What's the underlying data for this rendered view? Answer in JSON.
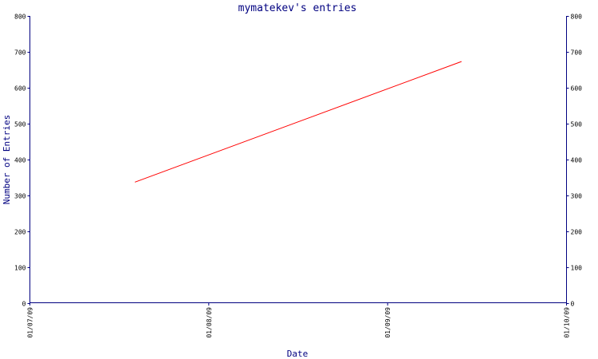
{
  "chart_data": {
    "type": "line",
    "title": "mymatekev's entries",
    "xlabel": "Date",
    "ylabel": "Number of Entries",
    "x_ticks": [
      "01/07/09",
      "01/08/09",
      "01/09/09",
      "01/10/09"
    ],
    "y_ticks": [
      0,
      100,
      200,
      300,
      400,
      500,
      600,
      700,
      800
    ],
    "ylim": [
      0,
      800
    ],
    "xlim": [
      "2009-07-01",
      "2009-10-01"
    ],
    "grid": false,
    "legend": "none",
    "series": [
      {
        "color": "#ff0000",
        "points": [
          {
            "x": "2009-07-19",
            "y": 337
          },
          {
            "x": "2009-09-13",
            "y": 673
          }
        ]
      }
    ],
    "colors": {
      "axis": "#000080",
      "text": "#000080",
      "line": "#ff0000"
    }
  }
}
